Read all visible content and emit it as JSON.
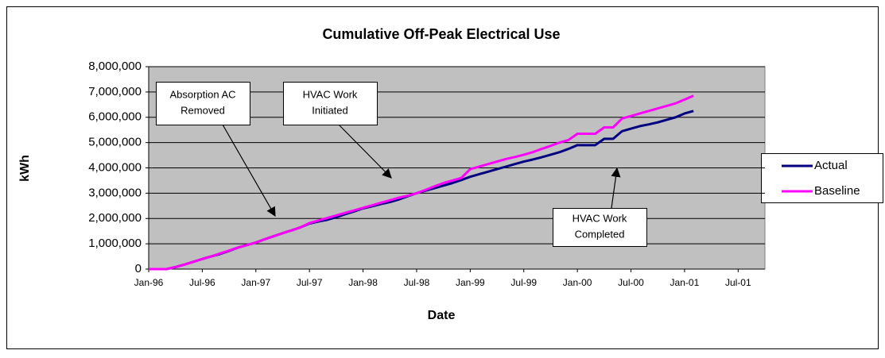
{
  "chart_data": {
    "type": "line",
    "title": "Cumulative Off-Peak Electrical Use",
    "x_label": "Date",
    "y_label": "kWh",
    "x": [
      "1996-01",
      "1996-02",
      "1996-03",
      "1996-04",
      "1996-05",
      "1996-06",
      "1996-07",
      "1996-08",
      "1996-09",
      "1996-10",
      "1996-11",
      "1996-12",
      "1997-01",
      "1997-02",
      "1997-03",
      "1997-04",
      "1997-05",
      "1997-06",
      "1997-07",
      "1997-08",
      "1997-09",
      "1997-10",
      "1997-11",
      "1997-12",
      "1998-01",
      "1998-02",
      "1998-03",
      "1998-04",
      "1998-05",
      "1998-06",
      "1998-07",
      "1998-08",
      "1998-09",
      "1998-10",
      "1998-11",
      "1998-12",
      "1999-01",
      "1999-02",
      "1999-03",
      "1999-04",
      "1999-05",
      "1999-06",
      "1999-07",
      "1999-08",
      "1999-09",
      "1999-10",
      "1999-11",
      "1999-12",
      "2000-01",
      "2000-02",
      "2000-03",
      "2000-04",
      "2000-05",
      "2000-06",
      "2000-07",
      "2000-08",
      "2000-09",
      "2000-10",
      "2000-11",
      "2000-12",
      "2001-01",
      "2001-02"
    ],
    "series": [
      {
        "name": "Actual",
        "color": "#000080",
        "values": [
          0,
          0,
          0,
          80000,
          180000,
          290000,
          400000,
          500000,
          600000,
          720000,
          850000,
          950000,
          1050000,
          1180000,
          1300000,
          1420000,
          1530000,
          1650000,
          1800000,
          1880000,
          1950000,
          2050000,
          2170000,
          2280000,
          2400000,
          2480000,
          2570000,
          2650000,
          2750000,
          2880000,
          3000000,
          3100000,
          3200000,
          3300000,
          3400000,
          3520000,
          3650000,
          3750000,
          3850000,
          3950000,
          4050000,
          4150000,
          4250000,
          4330000,
          4420000,
          4520000,
          4620000,
          4750000,
          4900000,
          4900000,
          4900000,
          5150000,
          5150000,
          5450000,
          5550000,
          5650000,
          5720000,
          5800000,
          5900000,
          6000000,
          6150000,
          6250000
        ]
      },
      {
        "name": "Baseline",
        "color": "#ff00ff",
        "values": [
          0,
          0,
          0,
          80000,
          180000,
          290000,
          400000,
          500000,
          620000,
          730000,
          850000,
          950000,
          1050000,
          1180000,
          1300000,
          1420000,
          1530000,
          1650000,
          1820000,
          1920000,
          2020000,
          2120000,
          2220000,
          2320000,
          2420000,
          2520000,
          2620000,
          2720000,
          2820000,
          2900000,
          3000000,
          3130000,
          3270000,
          3400000,
          3500000,
          3600000,
          3950000,
          4050000,
          4150000,
          4250000,
          4350000,
          4430000,
          4520000,
          4620000,
          4750000,
          4870000,
          5000000,
          5100000,
          5350000,
          5350000,
          5350000,
          5600000,
          5600000,
          5950000,
          6050000,
          6150000,
          6250000,
          6350000,
          6450000,
          6550000,
          6700000,
          6850000
        ]
      }
    ],
    "xlim": [
      "1996-01",
      "2001-10"
    ],
    "xticks": [
      {
        "value": "1996-01",
        "label": "Jan-96"
      },
      {
        "value": "1996-07",
        "label": "Jul-96"
      },
      {
        "value": "1997-01",
        "label": "Jan-97"
      },
      {
        "value": "1997-07",
        "label": "Jul-97"
      },
      {
        "value": "1998-01",
        "label": "Jan-98"
      },
      {
        "value": "1998-07",
        "label": "Jul-98"
      },
      {
        "value": "1999-01",
        "label": "Jan-99"
      },
      {
        "value": "1999-07",
        "label": "Jul-99"
      },
      {
        "value": "2000-01",
        "label": "Jan-00"
      },
      {
        "value": "2000-07",
        "label": "Jul-00"
      },
      {
        "value": "2001-01",
        "label": "Jan-01"
      },
      {
        "value": "2001-07",
        "label": "Jul-01"
      }
    ],
    "ylim": [
      0,
      8000000
    ],
    "yticks": [
      0,
      {
        "value": 1000000,
        "label": "1,000,000"
      },
      {
        "value": 2000000,
        "label": "2,000,000"
      },
      {
        "value": 3000000,
        "label": "3,000,000"
      },
      {
        "value": 4000000,
        "label": "4,000,000"
      },
      {
        "value": 5000000,
        "label": "5,000,000"
      },
      {
        "value": 6000000,
        "label": "6,000,000"
      },
      {
        "value": 7000000,
        "label": "7,000,000"
      },
      {
        "value": 8000000,
        "label": "8,000,000"
      }
    ],
    "grid": true,
    "legend": "right",
    "annotations": [
      {
        "lines": [
          "Absorption AC",
          "Removed"
        ]
      },
      {
        "lines": [
          "HVAC Work",
          "Initiated"
        ]
      },
      {
        "lines": [
          "HVAC Work",
          "Completed"
        ]
      }
    ]
  }
}
